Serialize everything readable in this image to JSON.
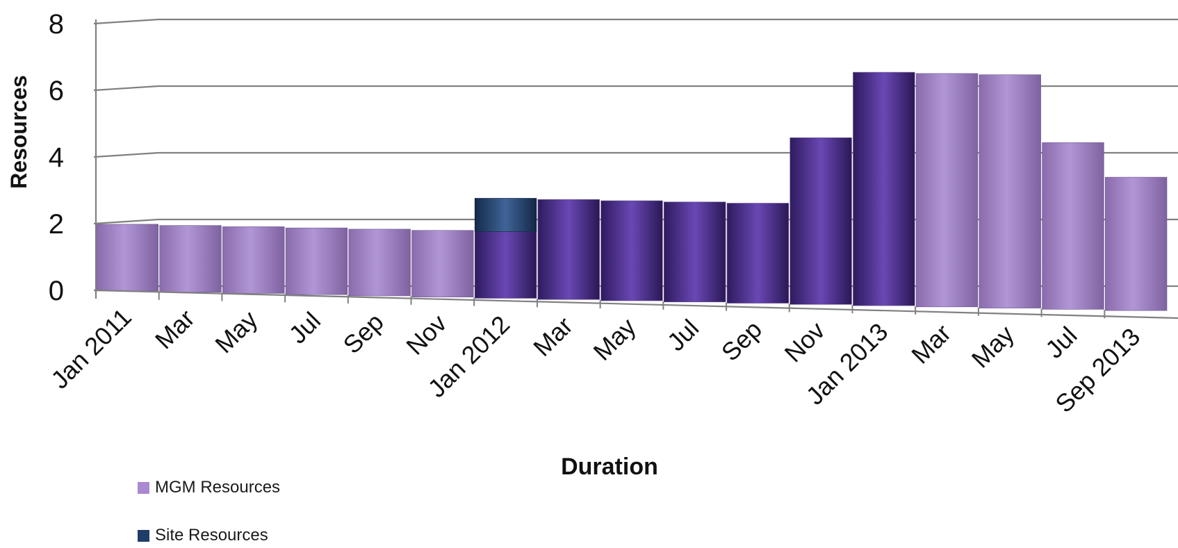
{
  "chart_data": {
    "type": "bar",
    "xlabel": "Duration",
    "ylabel": "Resources",
    "ylim": [
      0,
      8
    ],
    "yticks": [
      0,
      2,
      4,
      6,
      8
    ],
    "categories": [
      "Jan 2011",
      "Mar",
      "May",
      "Jul",
      "Sep",
      "Nov",
      "Jan 2012",
      "Mar",
      "May",
      "Jul",
      "Sep",
      "Nov",
      "Jan 2013",
      "Mar",
      "May",
      "Jul",
      "Sep 2013"
    ],
    "series": [
      {
        "name": "MGM Resources",
        "color": "#9f7fc6",
        "values": [
          2,
          2,
          2,
          2,
          2,
          2,
          2,
          3,
          3,
          3,
          3,
          5,
          7,
          7,
          7,
          5,
          4
        ]
      },
      {
        "name": "Site Resources",
        "color": "#1f3d66",
        "values": [
          0,
          0,
          0,
          0,
          0,
          0,
          1,
          0,
          0,
          0,
          0,
          0,
          0,
          0,
          0,
          0,
          0
        ]
      }
    ],
    "grid": true,
    "legend_position": "bottom-left"
  }
}
